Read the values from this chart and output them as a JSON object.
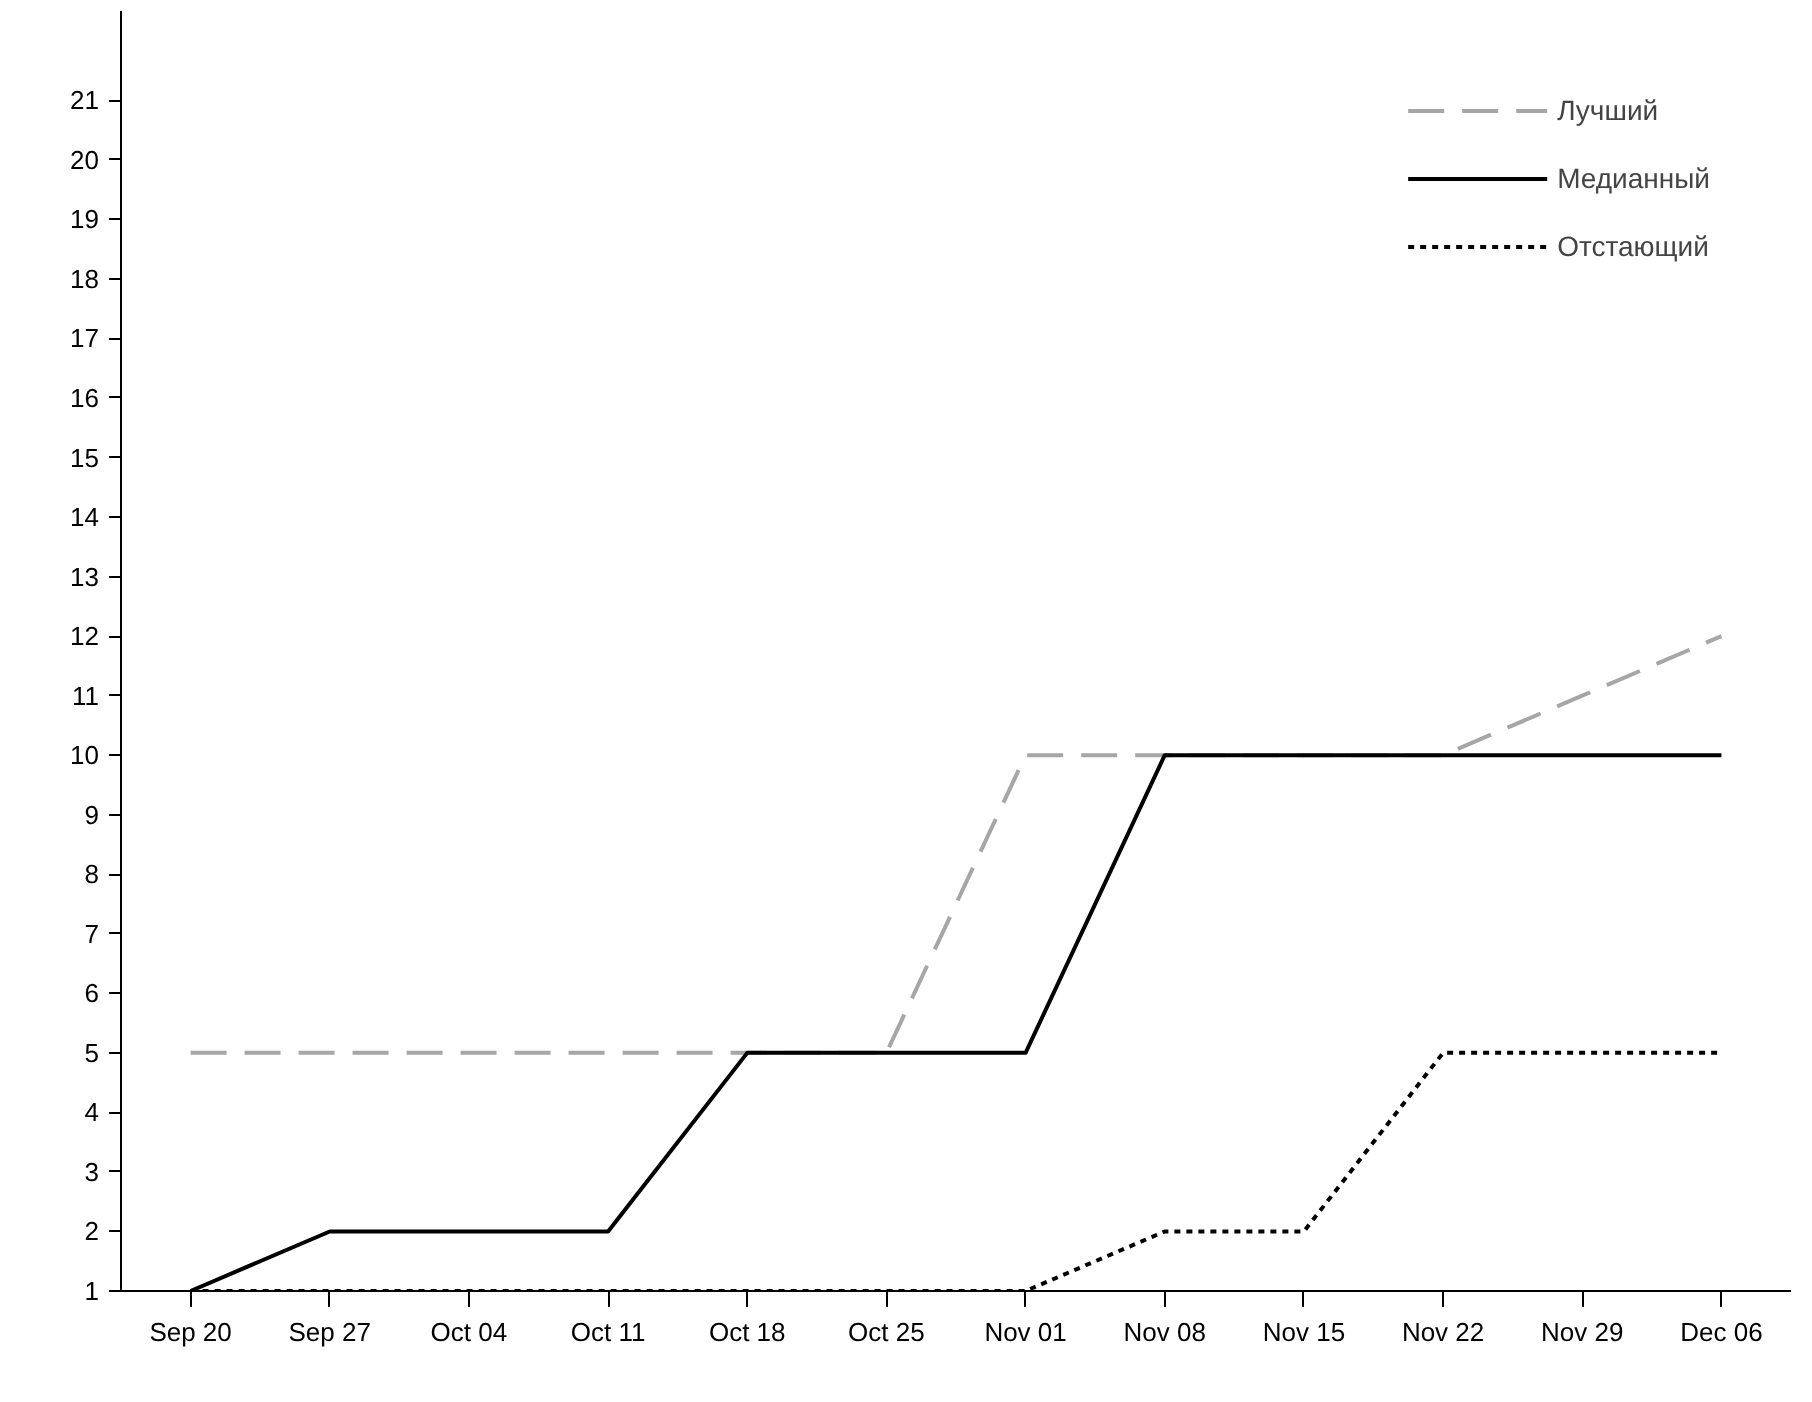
{
  "chart_data": {
    "type": "line",
    "categories": [
      "Sep 20",
      "Sep 27",
      "Oct 04",
      "Oct 11",
      "Oct 18",
      "Oct 25",
      "Nov 01",
      "Nov 08",
      "Nov 15",
      "Nov 22",
      "Nov 29",
      "Dec 06"
    ],
    "series": [
      {
        "name": "Лучший",
        "color": "#a6a6a6",
        "line_style": "dashed",
        "values": [
          5,
          5,
          5,
          5,
          5,
          5,
          10,
          10,
          10,
          10,
          11,
          12
        ]
      },
      {
        "name": "Медианный",
        "color": "#000000",
        "line_style": "solid",
        "values": [
          1,
          2,
          2,
          2,
          5,
          5,
          5,
          10,
          10,
          10,
          10,
          10
        ]
      },
      {
        "name": "Отстающий",
        "color": "#000000",
        "line_style": "dotted",
        "values": [
          1,
          1,
          1,
          1,
          1,
          1,
          1,
          2,
          2,
          5,
          5,
          5
        ]
      }
    ],
    "ylim": [
      1,
      22.5
    ],
    "yticks": [
      1,
      2,
      3,
      4,
      5,
      6,
      7,
      8,
      9,
      10,
      11,
      12,
      13,
      14,
      15,
      16,
      17,
      18,
      19,
      20,
      21
    ],
    "grid": false,
    "legend": "top right",
    "marker": "none"
  }
}
